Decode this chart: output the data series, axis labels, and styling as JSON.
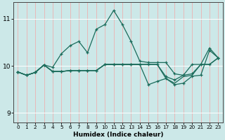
{
  "xlabel": "Humidex (Indice chaleur)",
  "bg_color": "#cce8e8",
  "vgrid_color": "#e8b8b8",
  "hgrid_color": "#ffffff",
  "line_color": "#1a6b5a",
  "xlim": [
    -0.5,
    23.5
  ],
  "ylim": [
    8.8,
    11.35
  ],
  "yticks": [
    9,
    10,
    11
  ],
  "xticks": [
    0,
    1,
    2,
    3,
    4,
    5,
    6,
    7,
    8,
    9,
    10,
    11,
    12,
    13,
    14,
    15,
    16,
    17,
    18,
    19,
    20,
    21,
    22,
    23
  ],
  "series1_x": [
    0,
    1,
    2,
    3,
    4,
    5,
    6,
    7,
    8,
    9,
    10,
    11,
    12,
    13,
    14,
    15,
    16,
    17,
    18,
    19,
    20,
    21,
    22,
    23
  ],
  "series1_y": [
    9.87,
    9.8,
    9.86,
    10.02,
    9.97,
    10.26,
    10.43,
    10.52,
    10.28,
    10.78,
    10.88,
    11.18,
    10.88,
    10.52,
    10.1,
    10.07,
    10.07,
    10.07,
    9.83,
    9.8,
    10.03,
    10.03,
    10.38,
    10.17
  ],
  "series2_x": [
    0,
    1,
    2,
    3,
    4,
    5,
    6,
    7,
    8,
    9,
    10,
    11,
    12,
    13,
    14,
    15,
    16,
    17,
    18,
    19,
    20,
    21,
    22,
    23
  ],
  "series2_y": [
    9.87,
    9.8,
    9.86,
    10.02,
    9.88,
    9.88,
    9.9,
    9.9,
    9.9,
    9.9,
    10.03,
    10.03,
    10.03,
    10.03,
    10.03,
    10.03,
    10.03,
    9.77,
    9.7,
    9.8,
    9.83,
    10.03,
    10.03,
    10.17
  ],
  "series3_x": [
    0,
    1,
    2,
    3,
    4,
    5,
    6,
    7,
    8,
    9,
    10,
    11,
    12,
    13,
    14,
    15,
    16,
    17,
    18,
    19,
    20,
    21,
    22,
    23
  ],
  "series3_y": [
    9.87,
    9.8,
    9.86,
    10.02,
    9.88,
    9.88,
    9.9,
    9.9,
    9.9,
    9.9,
    10.03,
    10.03,
    10.03,
    10.03,
    10.03,
    10.03,
    10.03,
    9.73,
    9.63,
    9.77,
    9.8,
    10.03,
    10.03,
    10.17
  ],
  "series4_x": [
    0,
    1,
    2,
    3,
    4,
    5,
    6,
    7,
    8,
    9,
    10,
    11,
    12,
    13,
    14,
    15,
    16,
    17,
    18,
    19,
    20,
    21,
    22,
    23
  ],
  "series4_y": [
    9.87,
    9.8,
    9.86,
    10.02,
    9.88,
    9.88,
    9.9,
    9.9,
    9.9,
    9.9,
    10.03,
    10.03,
    10.03,
    10.03,
    10.03,
    9.6,
    9.67,
    9.73,
    9.6,
    9.63,
    9.78,
    9.8,
    10.33,
    10.17
  ]
}
